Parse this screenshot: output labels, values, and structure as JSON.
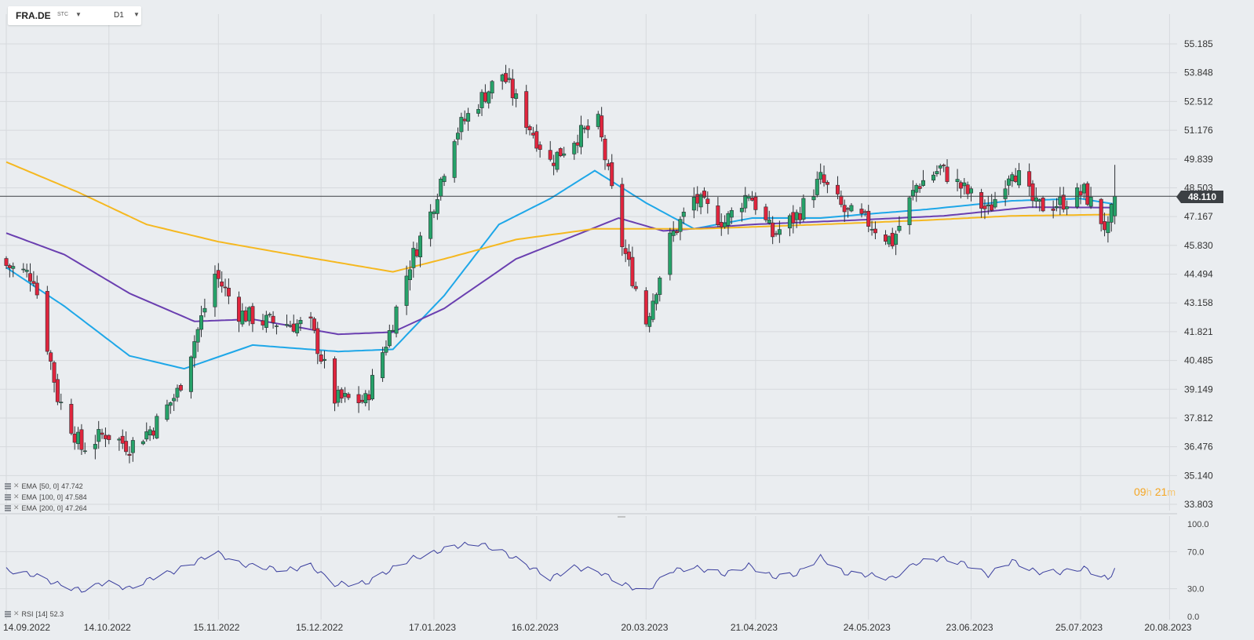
{
  "symbol": {
    "name": "FRA.DE",
    "suffix": "STC",
    "timeframe": "D1"
  },
  "current_price": "48.110",
  "countdown": {
    "hours": "09",
    "h": "h",
    "minutes": "21",
    "m": "m"
  },
  "legend": [
    {
      "label": "EMA",
      "params": "[50, 0]",
      "value": "47.742"
    },
    {
      "label": "EMA",
      "params": "[100, 0]",
      "value": "47.584"
    },
    {
      "label": "EMA",
      "params": "[200, 0]",
      "value": "47.264"
    }
  ],
  "rsi_legend": {
    "label": "RSI",
    "params": "[14]",
    "value": "52.3"
  },
  "colors": {
    "up": "#26a269",
    "down": "#e0253d",
    "ema50": "#1ea7e8",
    "ema100": "#6a3fb0",
    "ema200": "#f5b820",
    "rsi": "#3b3f9e"
  },
  "chart_data": [
    {
      "type": "candlestick",
      "price_axis_labels": [
        "55.185",
        "53.848",
        "52.512",
        "51.176",
        "49.839",
        "48.503",
        "47.167",
        "45.830",
        "44.494",
        "43.158",
        "41.821",
        "40.485",
        "39.149",
        "37.812",
        "36.476",
        "35.140",
        "33.803"
      ],
      "date_axis_labels": [
        "14.09.2022",
        "14.10.2022",
        "15.11.2022",
        "15.12.2022",
        "17.01.2023",
        "16.02.2023",
        "20.03.2023",
        "21.04.2023",
        "24.05.2023",
        "23.06.2023",
        "25.07.2023",
        "20.08.2023"
      ],
      "ylim": [
        33.803,
        55.185
      ],
      "grid": true,
      "close_anchors": [
        [
          "2022-09-14",
          44.9
        ],
        [
          "2022-09-22",
          44.4
        ],
        [
          "2022-09-29",
          38.8
        ],
        [
          "2022-10-06",
          36.4
        ],
        [
          "2022-10-13",
          37.1
        ],
        [
          "2022-10-20",
          36.5
        ],
        [
          "2022-10-27",
          37.4
        ],
        [
          "2022-11-03",
          39.0
        ],
        [
          "2022-11-09",
          41.9
        ],
        [
          "2022-11-14",
          44.5
        ],
        [
          "2022-11-21",
          42.7
        ],
        [
          "2022-11-28",
          42.3
        ],
        [
          "2022-12-05",
          42.2
        ],
        [
          "2022-12-12",
          42.1
        ],
        [
          "2022-12-19",
          38.7
        ],
        [
          "2022-12-28",
          38.6
        ],
        [
          "2023-01-04",
          41.8
        ],
        [
          "2023-01-10",
          45.0
        ],
        [
          "2023-01-16",
          47.3
        ],
        [
          "2023-01-23",
          51.0
        ],
        [
          "2023-01-30",
          52.5
        ],
        [
          "2023-02-06",
          53.8
        ],
        [
          "2023-02-13",
          51.6
        ],
        [
          "2023-02-20",
          49.7
        ],
        [
          "2023-02-27",
          50.8
        ],
        [
          "2023-03-06",
          51.5
        ],
        [
          "2023-03-13",
          45.9
        ],
        [
          "2023-03-20",
          42.3
        ],
        [
          "2023-03-27",
          46.1
        ],
        [
          "2023-04-03",
          48.0
        ],
        [
          "2023-04-12",
          46.9
        ],
        [
          "2023-04-19",
          48.3
        ],
        [
          "2023-04-26",
          46.3
        ],
        [
          "2023-05-03",
          47.2
        ],
        [
          "2023-05-10",
          48.9
        ],
        [
          "2023-05-17",
          47.4
        ],
        [
          "2023-05-24",
          46.9
        ],
        [
          "2023-05-31",
          46.0
        ],
        [
          "2023-06-07",
          48.6
        ],
        [
          "2023-06-14",
          49.4
        ],
        [
          "2023-06-21",
          48.4
        ],
        [
          "2023-06-28",
          47.4
        ],
        [
          "2023-07-05",
          49.5
        ],
        [
          "2023-07-12",
          47.6
        ],
        [
          "2023-07-19",
          47.8
        ],
        [
          "2023-07-26",
          48.3
        ],
        [
          "2023-08-02",
          46.5
        ],
        [
          "2023-08-04",
          48.11
        ]
      ],
      "ema_series": [
        {
          "name": "EMA [50, 0]",
          "anchors": [
            [
              "2022-09-14",
              44.8
            ],
            [
              "2022-10-01",
              43.0
            ],
            [
              "2022-10-20",
              40.7
            ],
            [
              "2022-11-05",
              40.1
            ],
            [
              "2022-11-25",
              41.2
            ],
            [
              "2022-12-20",
              40.9
            ],
            [
              "2023-01-05",
              41.0
            ],
            [
              "2023-01-20",
              43.5
            ],
            [
              "2023-02-05",
              46.8
            ],
            [
              "2023-02-20",
              48.0
            ],
            [
              "2023-03-05",
              49.3
            ],
            [
              "2023-03-20",
              47.8
            ],
            [
              "2023-04-03",
              46.6
            ],
            [
              "2023-04-20",
              47.1
            ],
            [
              "2023-05-10",
              47.1
            ],
            [
              "2023-05-25",
              47.3
            ],
            [
              "2023-06-10",
              47.5
            ],
            [
              "2023-07-05",
              47.9
            ],
            [
              "2023-07-25",
              48.0
            ],
            [
              "2023-08-04",
              47.742
            ]
          ]
        },
        {
          "name": "EMA [100, 0]",
          "anchors": [
            [
              "2022-09-14",
              46.4
            ],
            [
              "2022-10-01",
              45.4
            ],
            [
              "2022-10-20",
              43.6
            ],
            [
              "2022-11-08",
              42.3
            ],
            [
              "2022-11-25",
              42.4
            ],
            [
              "2022-12-20",
              41.7
            ],
            [
              "2023-01-05",
              41.8
            ],
            [
              "2023-01-20",
              42.9
            ],
            [
              "2023-02-10",
              45.2
            ],
            [
              "2023-03-01",
              46.4
            ],
            [
              "2023-03-12",
              47.1
            ],
            [
              "2023-03-25",
              46.5
            ],
            [
              "2023-04-20",
              46.8
            ],
            [
              "2023-05-20",
              47.0
            ],
            [
              "2023-06-15",
              47.2
            ],
            [
              "2023-07-10",
              47.6
            ],
            [
              "2023-08-04",
              47.584
            ]
          ]
        },
        {
          "name": "EMA [200, 0]",
          "anchors": [
            [
              "2022-09-14",
              49.7
            ],
            [
              "2022-10-05",
              48.3
            ],
            [
              "2022-10-25",
              46.8
            ],
            [
              "2022-11-15",
              46.0
            ],
            [
              "2022-12-10",
              45.3
            ],
            [
              "2023-01-05",
              44.6
            ],
            [
              "2023-01-20",
              45.2
            ],
            [
              "2023-02-10",
              46.1
            ],
            [
              "2023-03-05",
              46.6
            ],
            [
              "2023-03-20",
              46.6
            ],
            [
              "2023-04-05",
              46.6
            ],
            [
              "2023-05-10",
              46.8
            ],
            [
              "2023-06-10",
              47.0
            ],
            [
              "2023-07-05",
              47.2
            ],
            [
              "2023-08-04",
              47.264
            ]
          ]
        }
      ]
    },
    {
      "type": "line",
      "name": "RSI [14]",
      "ylim": [
        0.0,
        100.0
      ],
      "y_axis_labels": [
        "100.0",
        "70.0",
        "30.0",
        "0.0"
      ],
      "anchors": [
        [
          "2022-09-14",
          50
        ],
        [
          "2022-09-22",
          45
        ],
        [
          "2022-09-29",
          35
        ],
        [
          "2022-10-06",
          28
        ],
        [
          "2022-10-13",
          37
        ],
        [
          "2022-10-20",
          30
        ],
        [
          "2022-10-27",
          42
        ],
        [
          "2022-11-03",
          50
        ],
        [
          "2022-11-09",
          60
        ],
        [
          "2022-11-14",
          70
        ],
        [
          "2022-11-21",
          57
        ],
        [
          "2022-11-28",
          53
        ],
        [
          "2022-12-05",
          50
        ],
        [
          "2022-12-12",
          55
        ],
        [
          "2022-12-19",
          35
        ],
        [
          "2022-12-28",
          36
        ],
        [
          "2023-01-04",
          50
        ],
        [
          "2023-01-10",
          62
        ],
        [
          "2023-01-16",
          68
        ],
        [
          "2023-01-23",
          76
        ],
        [
          "2023-01-30",
          79
        ],
        [
          "2023-02-06",
          70
        ],
        [
          "2023-02-13",
          56
        ],
        [
          "2023-02-20",
          41
        ],
        [
          "2023-02-27",
          53
        ],
        [
          "2023-03-06",
          49
        ],
        [
          "2023-03-13",
          35
        ],
        [
          "2023-03-20",
          27
        ],
        [
          "2023-03-27",
          49
        ],
        [
          "2023-04-03",
          53
        ],
        [
          "2023-04-12",
          46
        ],
        [
          "2023-04-19",
          55
        ],
        [
          "2023-04-26",
          43
        ],
        [
          "2023-05-03",
          46
        ],
        [
          "2023-05-10",
          64
        ],
        [
          "2023-05-17",
          47
        ],
        [
          "2023-05-24",
          45
        ],
        [
          "2023-05-31",
          41
        ],
        [
          "2023-06-07",
          58
        ],
        [
          "2023-06-14",
          63
        ],
        [
          "2023-06-21",
          57
        ],
        [
          "2023-06-28",
          45
        ],
        [
          "2023-07-05",
          60
        ],
        [
          "2023-07-12",
          48
        ],
        [
          "2023-07-19",
          48
        ],
        [
          "2023-07-26",
          52
        ],
        [
          "2023-08-02",
          40
        ],
        [
          "2023-08-04",
          52.3
        ]
      ]
    }
  ]
}
